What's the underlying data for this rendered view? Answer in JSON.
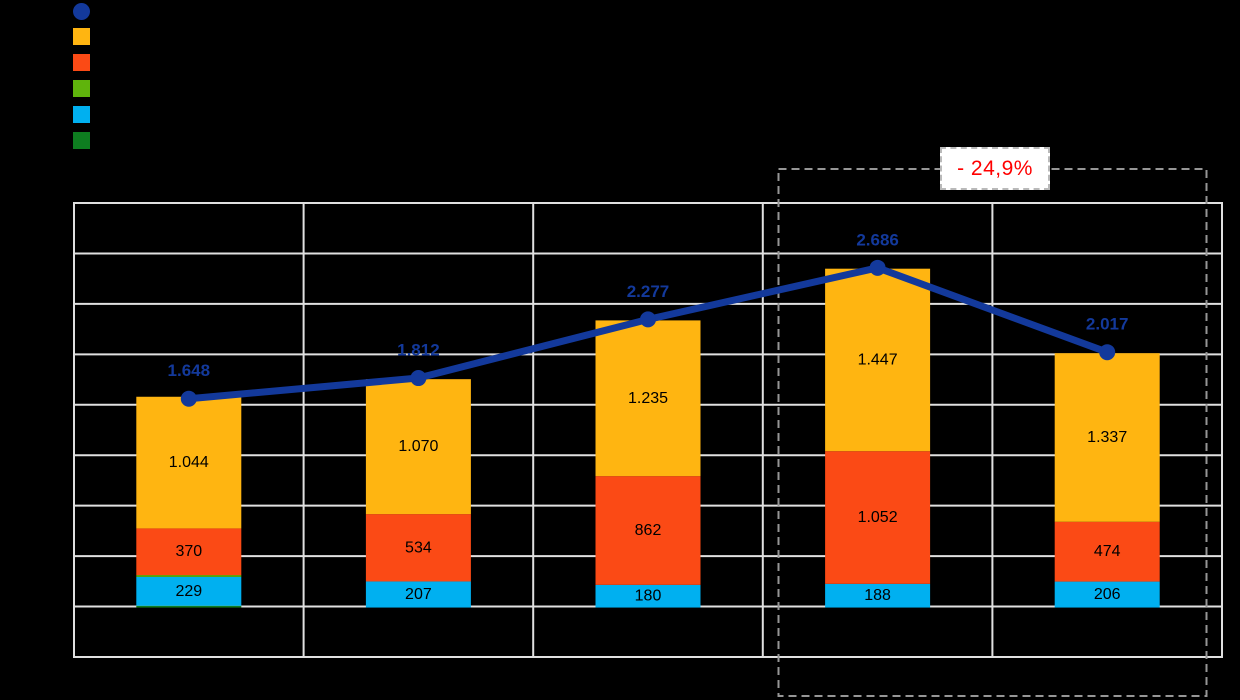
{
  "canvas": {
    "background": "#000000",
    "plot_background": "#000000",
    "gridline_color": "#E0E0E0"
  },
  "legend": {
    "items": [
      {
        "key": "total-line",
        "shape": "circle",
        "color": "#13399B",
        "label": ""
      },
      {
        "key": "yellow",
        "shape": "square",
        "color": "#FFB511",
        "label": ""
      },
      {
        "key": "orange",
        "shape": "square",
        "color": "#FB4A15",
        "label": ""
      },
      {
        "key": "green",
        "shape": "square",
        "color": "#5FB40C",
        "label": ""
      },
      {
        "key": "light-blue",
        "shape": "square",
        "color": "#00B0F0",
        "label": ""
      },
      {
        "key": "dark-green",
        "shape": "square",
        "color": "#0E7D20",
        "label": ""
      }
    ]
  },
  "chart_data": {
    "type": "stacked-bar-with-line",
    "categories": [
      "",
      "",
      "",
      "",
      ""
    ],
    "series": [
      {
        "key": "dark-green",
        "color": "#0E7D20",
        "labeled": false,
        "values": [
          1,
          0,
          0,
          0,
          0
        ],
        "labels": [
          "",
          "",
          "",
          "",
          ""
        ]
      },
      {
        "key": "light-blue",
        "color": "#00B0F0",
        "labeled": true,
        "values": [
          229,
          207,
          180,
          188,
          206
        ],
        "labels": [
          "229",
          "207",
          "180",
          "188",
          "206"
        ]
      },
      {
        "key": "green",
        "color": "#5FB40C",
        "labeled": false,
        "values": [
          4,
          0,
          0,
          0,
          0
        ],
        "labels": [
          "",
          "",
          "",
          "",
          ""
        ]
      },
      {
        "key": "orange",
        "color": "#FB4A15",
        "labeled": true,
        "values": [
          370,
          534,
          862,
          1052,
          474
        ],
        "labels": [
          "370",
          "534",
          "862",
          "1.052",
          "474"
        ]
      },
      {
        "key": "yellow",
        "color": "#FFB511",
        "labeled": true,
        "values": [
          1044,
          1070,
          1235,
          1447,
          1337
        ],
        "labels": [
          "1.044",
          "1.070",
          "1.235",
          "1.447",
          "1.337"
        ]
      }
    ],
    "line": {
      "key": "total",
      "color": "#13399B",
      "values": [
        1648,
        1812,
        2277,
        2686,
        2017
      ],
      "labels": [
        "1.648",
        "1.812",
        "2.277",
        "2.686",
        "2.017"
      ]
    },
    "ylim": [
      -400,
      3200
    ],
    "ytick_step": 400,
    "tick_labels_visible": false,
    "grid": true,
    "legend_position": "top-left",
    "highlight": {
      "style": "dashed-box",
      "category_indexes": [
        3,
        4
      ],
      "box_color": "#969696",
      "label": "- 24,9%",
      "label_color": "#FF0000"
    }
  }
}
